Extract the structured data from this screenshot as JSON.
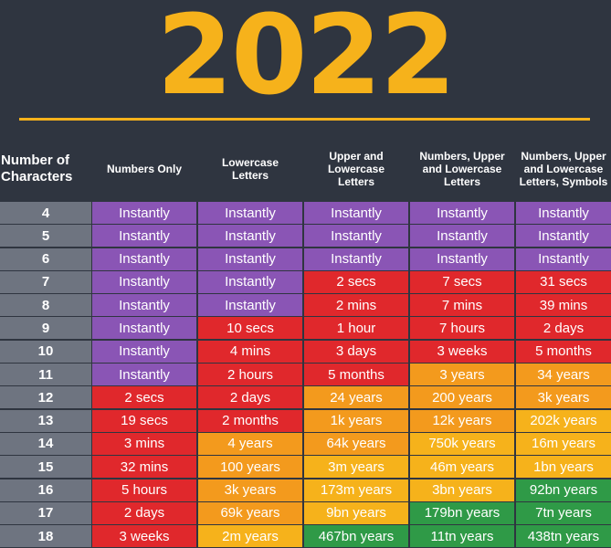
{
  "title": "2022",
  "headers": [
    "Number of\nCharacters",
    "Numbers Only",
    "Lowercase\nLetters",
    "Upper and\nLowercase\nLetters",
    "Numbers, Upper\nand Lowercase\nLetters",
    "Numbers, Upper\nand Lowercase\nLetters, Symbols"
  ],
  "colors": {
    "purple": "#8a55b5",
    "red": "#e0282c",
    "orange": "#f39a1d",
    "yellow": "#f6b21b",
    "green": "#2f9a47",
    "number_column": "#6e7480",
    "background": "#2f3540"
  },
  "rows": [
    {
      "chars": "4",
      "cells": [
        [
          "Instantly",
          "purple"
        ],
        [
          "Instantly",
          "purple"
        ],
        [
          "Instantly",
          "purple"
        ],
        [
          "Instantly",
          "purple"
        ],
        [
          "Instantly",
          "purple"
        ]
      ]
    },
    {
      "chars": "5",
      "cells": [
        [
          "Instantly",
          "purple"
        ],
        [
          "Instantly",
          "purple"
        ],
        [
          "Instantly",
          "purple"
        ],
        [
          "Instantly",
          "purple"
        ],
        [
          "Instantly",
          "purple"
        ]
      ]
    },
    {
      "chars": "6",
      "cells": [
        [
          "Instantly",
          "purple"
        ],
        [
          "Instantly",
          "purple"
        ],
        [
          "Instantly",
          "purple"
        ],
        [
          "Instantly",
          "purple"
        ],
        [
          "Instantly",
          "purple"
        ]
      ]
    },
    {
      "chars": "7",
      "cells": [
        [
          "Instantly",
          "purple"
        ],
        [
          "Instantly",
          "purple"
        ],
        [
          "2 secs",
          "red"
        ],
        [
          "7 secs",
          "red"
        ],
        [
          "31 secs",
          "red"
        ]
      ]
    },
    {
      "chars": "8",
      "cells": [
        [
          "Instantly",
          "purple"
        ],
        [
          "Instantly",
          "purple"
        ],
        [
          "2 mins",
          "red"
        ],
        [
          "7 mins",
          "red"
        ],
        [
          "39 mins",
          "red"
        ]
      ]
    },
    {
      "chars": "9",
      "cells": [
        [
          "Instantly",
          "purple"
        ],
        [
          "10 secs",
          "red"
        ],
        [
          "1 hour",
          "red"
        ],
        [
          "7 hours",
          "red"
        ],
        [
          "2 days",
          "red"
        ]
      ]
    },
    {
      "chars": "10",
      "cells": [
        [
          "Instantly",
          "purple"
        ],
        [
          "4 mins",
          "red"
        ],
        [
          "3 days",
          "red"
        ],
        [
          "3 weeks",
          "red"
        ],
        [
          "5 months",
          "red"
        ]
      ]
    },
    {
      "chars": "11",
      "cells": [
        [
          "Instantly",
          "purple"
        ],
        [
          "2 hours",
          "red"
        ],
        [
          "5 months",
          "red"
        ],
        [
          "3 years",
          "orange"
        ],
        [
          "34 years",
          "orange"
        ]
      ]
    },
    {
      "chars": "12",
      "cells": [
        [
          "2 secs",
          "red"
        ],
        [
          "2 days",
          "red"
        ],
        [
          "24 years",
          "orange"
        ],
        [
          "200 years",
          "orange"
        ],
        [
          "3k years",
          "orange"
        ]
      ]
    },
    {
      "chars": "13",
      "cells": [
        [
          "19 secs",
          "red"
        ],
        [
          "2 months",
          "red"
        ],
        [
          "1k years",
          "orange"
        ],
        [
          "12k years",
          "orange"
        ],
        [
          "202k years",
          "yellow"
        ]
      ]
    },
    {
      "chars": "14",
      "cells": [
        [
          "3 mins",
          "red"
        ],
        [
          "4 years",
          "orange"
        ],
        [
          "64k years",
          "orange"
        ],
        [
          "750k years",
          "yellow"
        ],
        [
          "16m years",
          "yellow"
        ]
      ]
    },
    {
      "chars": "15",
      "cells": [
        [
          "32 mins",
          "red"
        ],
        [
          "100 years",
          "orange"
        ],
        [
          "3m years",
          "yellow"
        ],
        [
          "46m years",
          "yellow"
        ],
        [
          "1bn years",
          "yellow"
        ]
      ]
    },
    {
      "chars": "16",
      "cells": [
        [
          "5 hours",
          "red"
        ],
        [
          "3k years",
          "orange"
        ],
        [
          "173m years",
          "yellow"
        ],
        [
          "3bn years",
          "yellow"
        ],
        [
          "92bn years",
          "green"
        ]
      ]
    },
    {
      "chars": "17",
      "cells": [
        [
          "2 days",
          "red"
        ],
        [
          "69k years",
          "orange"
        ],
        [
          "9bn years",
          "yellow"
        ],
        [
          "179bn years",
          "green"
        ],
        [
          "7tn years",
          "green"
        ]
      ]
    },
    {
      "chars": "18",
      "cells": [
        [
          "3 weeks",
          "red"
        ],
        [
          "2m years",
          "yellow"
        ],
        [
          "467bn years",
          "green"
        ],
        [
          "11tn years",
          "green"
        ],
        [
          "438tn years",
          "green"
        ]
      ]
    }
  ]
}
